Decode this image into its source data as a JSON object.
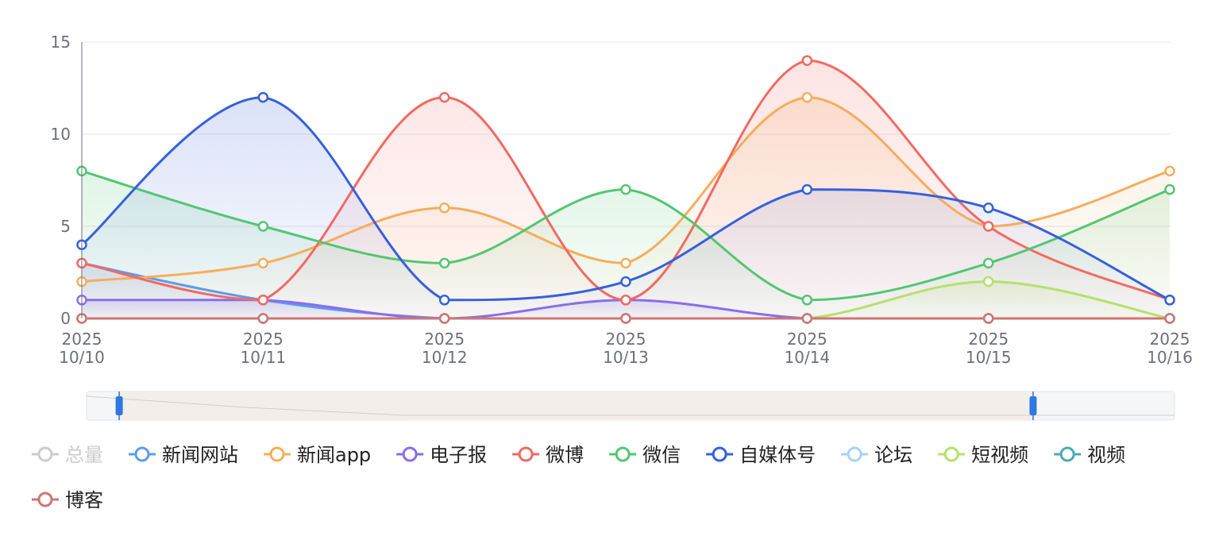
{
  "chart_data": {
    "type": "line",
    "smooth": true,
    "area_fill": true,
    "x_labels": [
      "2025\n10/10",
      "2025\n10/11",
      "2025\n10/12",
      "2025\n10/13",
      "2025\n10/14",
      "2025\n10/15",
      "2025\n10/16"
    ],
    "ylim": [
      0,
      15
    ],
    "y_ticks": [
      "0",
      "5",
      "10",
      "15"
    ],
    "grid": true,
    "legend_position": "bottom",
    "series": [
      {
        "name": "总量",
        "color": "#c8c8c8",
        "visible": false,
        "values": []
      },
      {
        "name": "新闻网站",
        "color": "#5b9bec",
        "visible": true,
        "values": [
          3,
          1,
          0,
          0,
          0,
          0,
          0
        ]
      },
      {
        "name": "新闻app",
        "color": "#f6ad5b",
        "visible": true,
        "values": [
          2,
          3,
          6,
          3,
          12,
          5,
          8
        ]
      },
      {
        "name": "电子报",
        "color": "#8a6ded",
        "visible": true,
        "values": [
          1,
          1,
          0,
          1,
          0,
          0,
          0
        ]
      },
      {
        "name": "微博",
        "color": "#f26a62",
        "visible": true,
        "values": [
          3,
          1,
          12,
          1,
          14,
          5,
          1
        ]
      },
      {
        "name": "微信",
        "color": "#53c673",
        "visible": true,
        "values": [
          8,
          5,
          3,
          7,
          1,
          3,
          7
        ]
      },
      {
        "name": "自媒体号",
        "color": "#3760dd",
        "visible": true,
        "values": [
          4,
          12,
          1,
          2,
          7,
          6,
          1
        ]
      },
      {
        "name": "论坛",
        "color": "#a7d3f6",
        "visible": true,
        "values": [
          0,
          0,
          0,
          0,
          0,
          0,
          0
        ]
      },
      {
        "name": "短视频",
        "color": "#b6e06e",
        "visible": true,
        "values": [
          0,
          0,
          0,
          0,
          0,
          2,
          0
        ]
      },
      {
        "name": "视频",
        "color": "#4aacb0",
        "visible": true,
        "values": [
          0,
          0,
          0,
          0,
          0,
          0,
          0
        ]
      },
      {
        "name": "博客",
        "color": "#cf7573",
        "visible": true,
        "values": [
          0,
          0,
          0,
          0,
          0,
          0,
          0
        ]
      }
    ],
    "datazoom": {
      "start_fraction": 0.03,
      "end_fraction": 0.87
    }
  }
}
